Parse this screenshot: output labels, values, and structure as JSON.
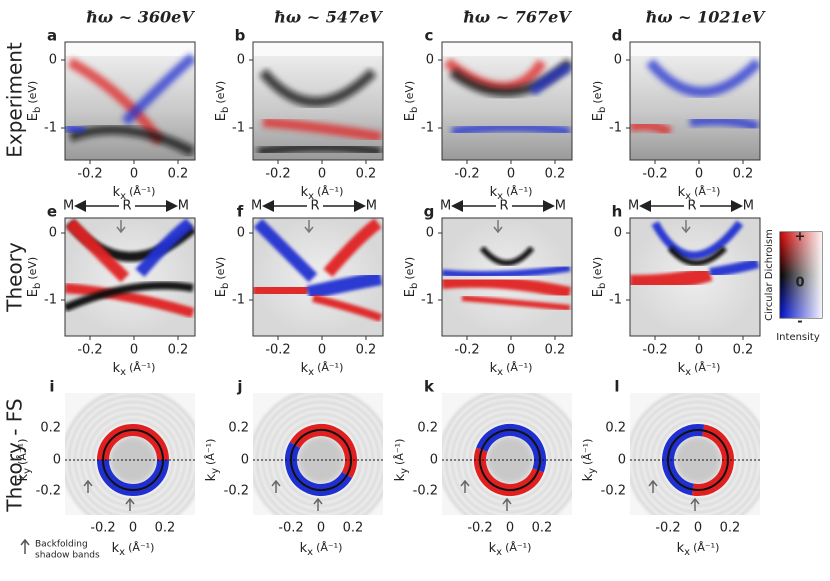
{
  "column_titles": [
    "ħω ~ 360eV",
    "ħω ~ 547eV",
    "ħω ~ 767eV",
    "ħω ~ 1021eV"
  ],
  "row_labels": [
    "Experiment",
    "Theory",
    "Theory - FS"
  ],
  "panel_letters": [
    [
      "a",
      "b",
      "c",
      "d"
    ],
    [
      "e",
      "f",
      "g",
      "h"
    ],
    [
      "i",
      "j",
      "k",
      "l"
    ]
  ],
  "band_axes": {
    "y_label": {
      "main": "E",
      "sub": "b",
      "unit": "(eV)"
    },
    "y_ticks": [
      "0",
      "-1"
    ],
    "x_label": {
      "main": "k",
      "sub": "x",
      "unit": "(Å⁻¹)"
    },
    "x_ticks": [
      "-0.2",
      "0",
      "0.2"
    ]
  },
  "fs_axes": {
    "y_label": {
      "main": "k",
      "sub": "y",
      "unit": "(Å⁻¹)"
    },
    "y_ticks": [
      "0.2",
      "0",
      "-0.2"
    ],
    "x_label": {
      "main": "k",
      "sub": "x",
      "unit": "(Å⁻¹)"
    },
    "x_ticks": [
      "-0.2",
      "0",
      "0.2"
    ]
  },
  "path_labels": [
    "M",
    "R",
    "M"
  ],
  "colorbar": {
    "title": "Circular Dichroism",
    "ticks": [
      "+",
      "0",
      "-"
    ],
    "footer": "Intensity"
  },
  "legend": [
    "Backfolding",
    "shadow bands"
  ]
}
